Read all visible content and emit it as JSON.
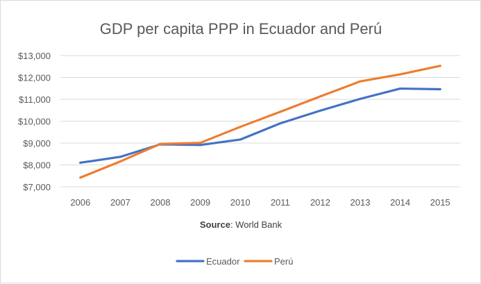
{
  "chart_data": {
    "type": "line",
    "title": "GDP per capita PPP in Ecuador and Perú",
    "categories": [
      "2006",
      "2007",
      "2008",
      "2009",
      "2010",
      "2011",
      "2012",
      "2013",
      "2014",
      "2015"
    ],
    "y_ticks": [
      "$7,000",
      "$8,000",
      "$9,000",
      "$10,000",
      "$11,000",
      "$12,000",
      "$13,000"
    ],
    "ylim": [
      7000,
      13000
    ],
    "grid": true,
    "legend_position": "bottom",
    "series": [
      {
        "name": "Ecuador",
        "color": "#4472c4",
        "values": [
          8100,
          8370,
          8940,
          8910,
          9160,
          9900,
          10480,
          11020,
          11490,
          11460
        ]
      },
      {
        "name": "Perú",
        "color": "#ed7d31",
        "values": [
          7420,
          8160,
          8960,
          9010,
          9740,
          10430,
          11130,
          11820,
          12140,
          12530
        ]
      }
    ],
    "source_label": "Source",
    "source_text": ": World Bank"
  }
}
